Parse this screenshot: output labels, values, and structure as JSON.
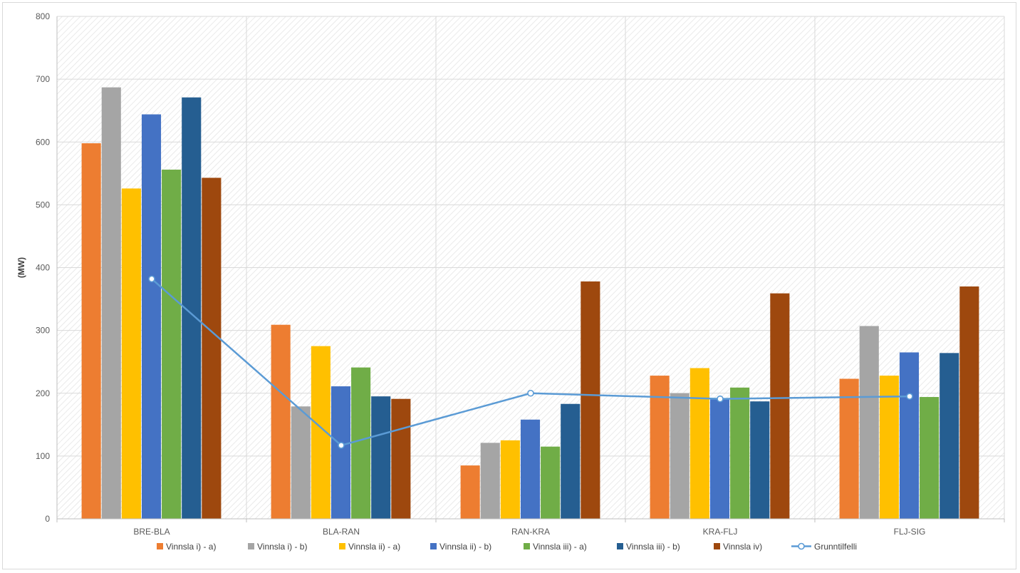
{
  "chart_data": {
    "type": "bar",
    "title": "",
    "xlabel": "",
    "ylabel": "(MW)",
    "ylim": [
      0,
      800
    ],
    "yticks": [
      0,
      100,
      200,
      300,
      400,
      500,
      600,
      700,
      800
    ],
    "grid": true,
    "legend_position": "bottom",
    "categories": [
      "BRE-BLA",
      "BLA-RAN",
      "RAN-KRA",
      "KRA-FLJ",
      "FLJ-SIG"
    ],
    "series": [
      {
        "name": "Vinnsla i) - a)",
        "kind": "bar",
        "color": "#ed7d31",
        "values": [
          598,
          309,
          85,
          228,
          223
        ]
      },
      {
        "name": "Vinnsla i) - b)",
        "kind": "bar",
        "color": "#a5a5a5",
        "values": [
          687,
          179,
          121,
          200,
          307
        ]
      },
      {
        "name": "Vinnsla ii) - a)",
        "kind": "bar",
        "color": "#ffc000",
        "values": [
          526,
          275,
          125,
          240,
          228
        ]
      },
      {
        "name": "Vinnsla ii) - b)",
        "kind": "bar",
        "color": "#4472c4",
        "values": [
          644,
          211,
          158,
          190,
          265
        ]
      },
      {
        "name": "Vinnsla iii) - a)",
        "kind": "bar",
        "color": "#70ad47",
        "values": [
          556,
          241,
          115,
          209,
          194
        ]
      },
      {
        "name": "Vinnsla iii) - b)",
        "kind": "bar",
        "color": "#255e91",
        "values": [
          671,
          195,
          183,
          187,
          264
        ]
      },
      {
        "name": "Vinnsla iv)",
        "kind": "bar",
        "color": "#9e480e",
        "values": [
          543,
          191,
          378,
          359,
          370
        ]
      },
      {
        "name": "Grunntilfelli",
        "kind": "line",
        "color": "#5b9bd5",
        "values": [
          382,
          117,
          200,
          191,
          195
        ]
      }
    ]
  }
}
